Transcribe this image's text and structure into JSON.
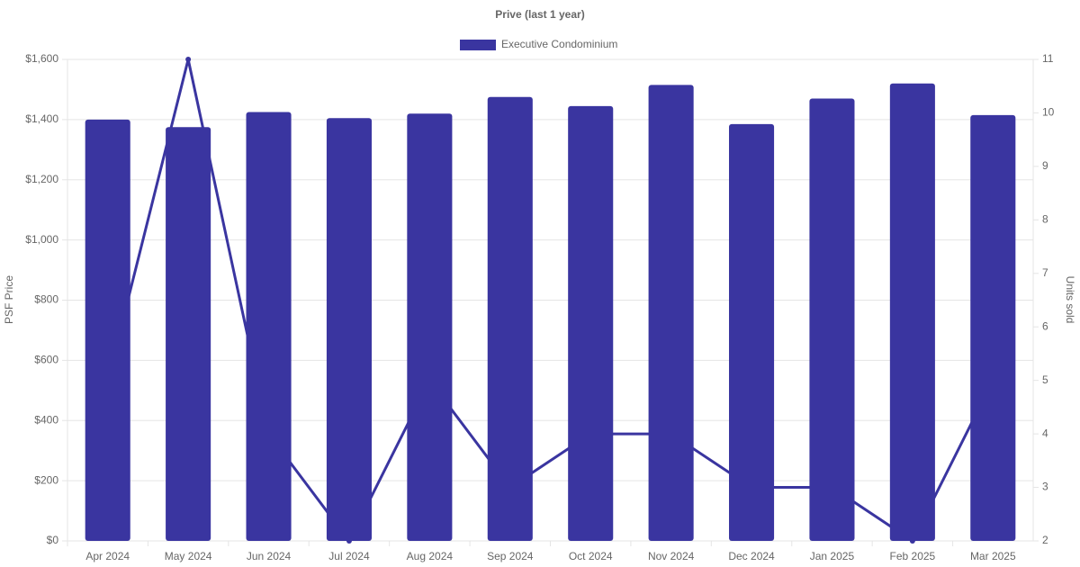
{
  "chart_data": {
    "type": "bar",
    "title": "Prive (last 1 year)",
    "y_label": "PSF Price",
    "y2_label": "Units sold",
    "categories": [
      "Apr 2024",
      "May 2024",
      "Jun 2024",
      "Jul 2024",
      "Aug 2024",
      "Sep 2024",
      "Oct 2024",
      "Nov 2024",
      "Dec 2024",
      "Jan 2025",
      "Feb 2025",
      "Mar 2025"
    ],
    "series": [
      {
        "name": "Executive Condominium",
        "type": "bar",
        "color": "#3a35a0",
        "values": [
          1400,
          1375,
          1425,
          1405,
          1420,
          1475,
          1445,
          1515,
          1385,
          1470,
          1520,
          1415
        ]
      },
      {
        "type": "line",
        "axis": "y2",
        "color": "#3a35a0",
        "values": [
          5,
          11,
          4,
          2,
          5,
          3,
          4,
          4,
          3,
          3,
          2,
          5
        ]
      }
    ],
    "ylim": [
      0,
      1600
    ],
    "yticks": [
      {
        "value": 0,
        "label": "$0"
      },
      {
        "value": 200,
        "label": "$200"
      },
      {
        "value": 400,
        "label": "$400"
      },
      {
        "value": 600,
        "label": "$600"
      },
      {
        "value": 800,
        "label": "$800"
      },
      {
        "value": 1000,
        "label": "$1,000"
      },
      {
        "value": 1200,
        "label": "$1,200"
      },
      {
        "value": 1400,
        "label": "$1,400"
      },
      {
        "value": 1600,
        "label": "$1,600"
      }
    ],
    "y2lim": [
      2,
      11
    ],
    "y2ticks": [
      2,
      3,
      4,
      5,
      6,
      7,
      8,
      9,
      10,
      11
    ],
    "grid": true,
    "legend": "top"
  }
}
